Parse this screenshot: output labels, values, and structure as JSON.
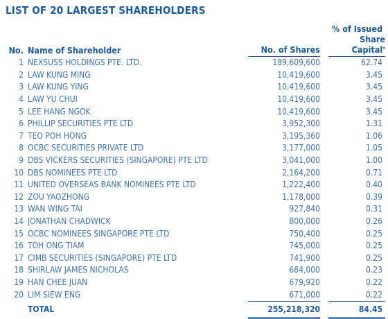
{
  "title": "LIST OF 20 LARGEST SHAREHOLDERS",
  "headers": {
    "no": "No.",
    "name": "Name of Shareholder",
    "shares": "No. of Shares",
    "pct_line1": "% of Issued",
    "pct_line2": "Share Capital",
    "pct_footnote_mark": "*"
  },
  "rows": [
    {
      "no": "1",
      "name": "NEXSUSS HOLDINGS PTE. LTD.",
      "shares": "189,609,600",
      "pct": "62.74"
    },
    {
      "no": "2",
      "name": "LAW KUNG MING",
      "shares": "10,419,600",
      "pct": "3.45"
    },
    {
      "no": "3",
      "name": "LAW KUNG YING",
      "shares": "10,419,600",
      "pct": "3.45"
    },
    {
      "no": "4",
      "name": "LAW YU CHUI",
      "shares": "10,419,600",
      "pct": "3.45"
    },
    {
      "no": "5",
      "name": "LEE HANG NGOK",
      "shares": "10,419,600",
      "pct": "3.45"
    },
    {
      "no": "6",
      "name": "PHILLIP SECURITIES PTE LTD",
      "shares": "3,952,300",
      "pct": "1.31"
    },
    {
      "no": "7",
      "name": "TEO POH HONG",
      "shares": "3,195,360",
      "pct": "1.06"
    },
    {
      "no": "8",
      "name": "OCBC SECURITIES PRIVATE LTD",
      "shares": "3,177,000",
      "pct": "1.05"
    },
    {
      "no": "9",
      "name": "DBS VICKERS SECURITIES (SINGAPORE) PTE LTD",
      "shares": "3,041,000",
      "pct": "1.00"
    },
    {
      "no": "10",
      "name": "DBS NOMINEES PTE LTD",
      "shares": "2,164,200",
      "pct": "0.71"
    },
    {
      "no": "11",
      "name": "UNITED OVERSEAS BANK NOMINEES PTE LTD",
      "shares": "1,222,400",
      "pct": "0.40"
    },
    {
      "no": "12",
      "name": "ZOU YAOZHONG",
      "shares": "1,178,000",
      "pct": "0.39"
    },
    {
      "no": "13",
      "name": "WAN WING TAI",
      "shares": "927,840",
      "pct": "0.31"
    },
    {
      "no": "14",
      "name": "JONATHAN CHADWICK",
      "shares": "800,000",
      "pct": "0.26"
    },
    {
      "no": "15",
      "name": "OCBC NOMINEES SINGAPORE PTE LTD",
      "shares": "750,400",
      "pct": "0.25"
    },
    {
      "no": "16",
      "name": "TOH ONG TIAM",
      "shares": "745,000",
      "pct": "0.25"
    },
    {
      "no": "17",
      "name": "CIMB SECURITIES (SINGAPORE) PTE LTD",
      "shares": "741,900",
      "pct": "0.25"
    },
    {
      "no": "18",
      "name": "SHIRLAW JAMES NICHOLAS",
      "shares": "684,000",
      "pct": "0.23"
    },
    {
      "no": "19",
      "name": "HAN CHEE JUAN",
      "shares": "679,920",
      "pct": "0.22"
    },
    {
      "no": "20",
      "name": "LIM SIEW ENG",
      "shares": "671,000",
      "pct": "0.22"
    }
  ],
  "total": {
    "label": "TOTAL",
    "shares": "255,218,320",
    "pct": "84.45"
  },
  "colors": {
    "heading": "#1a5aa0",
    "body_text": "#3b73b4",
    "background": "#ffffff"
  }
}
